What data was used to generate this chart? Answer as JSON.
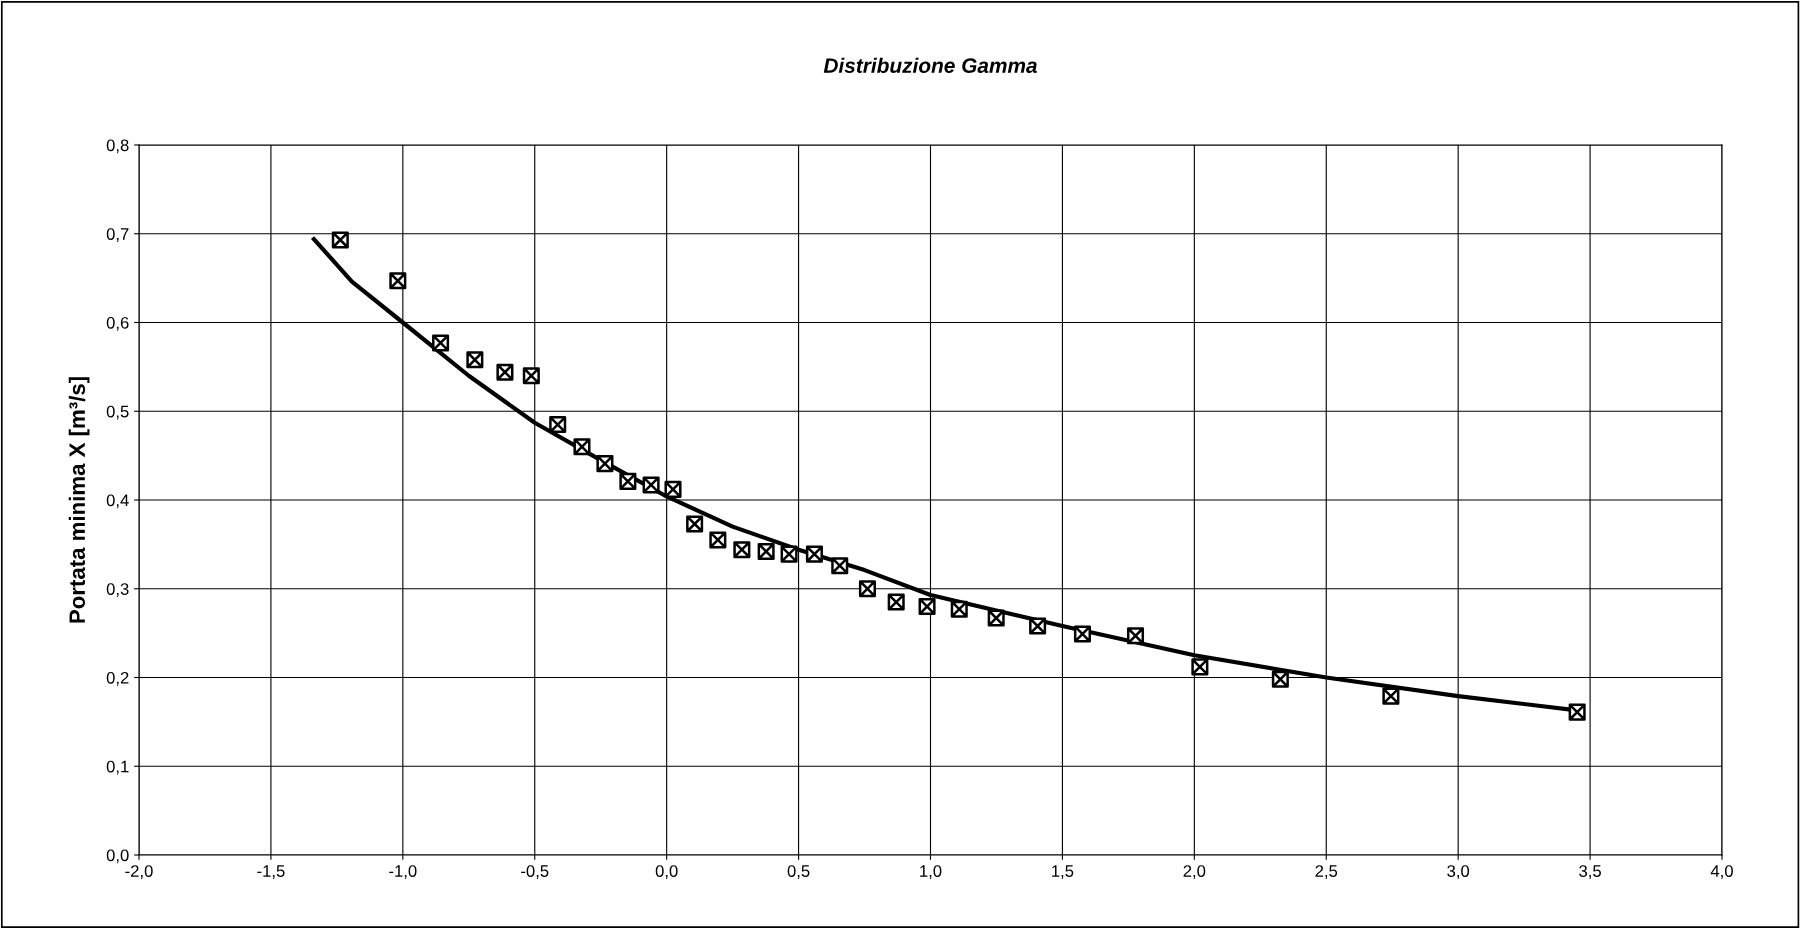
{
  "chart_data": {
    "type": "scatter",
    "title": "Distribuzione Gamma",
    "ylabel": "Portata minima X [m³/s]",
    "xlim": [
      -2.0,
      4.0
    ],
    "ylim": [
      0.0,
      0.8
    ],
    "xticks": [
      {
        "value": -2.0,
        "label": "-2,0"
      },
      {
        "value": -1.5,
        "label": "-1,5"
      },
      {
        "value": -1.0,
        "label": "-1,0"
      },
      {
        "value": -0.5,
        "label": "-0,5"
      },
      {
        "value": 0.0,
        "label": "0,0"
      },
      {
        "value": 0.5,
        "label": "0,5"
      },
      {
        "value": 1.0,
        "label": "1,0"
      },
      {
        "value": 1.5,
        "label": "1,5"
      },
      {
        "value": 2.0,
        "label": "2,0"
      },
      {
        "value": 2.5,
        "label": "2,5"
      },
      {
        "value": 3.0,
        "label": "3,0"
      },
      {
        "value": 3.5,
        "label": "3,5"
      },
      {
        "value": 4.0,
        "label": "4,0"
      }
    ],
    "yticks": [
      {
        "value": 0.0,
        "label": "0,0"
      },
      {
        "value": 0.1,
        "label": "0,1"
      },
      {
        "value": 0.2,
        "label": "0,2"
      },
      {
        "value": 0.3,
        "label": "0,3"
      },
      {
        "value": 0.4,
        "label": "0,4"
      },
      {
        "value": 0.5,
        "label": "0,5"
      },
      {
        "value": 0.6,
        "label": "0,6"
      },
      {
        "value": 0.7,
        "label": "0,7"
      },
      {
        "value": 0.8,
        "label": "0,8"
      }
    ],
    "grid": true,
    "series": [
      {
        "type": "line",
        "color": "#000000",
        "marker": "none",
        "line_style": "solid",
        "x": [
          -1.337,
          -1.193,
          -1.0,
          -0.75,
          -0.5,
          -0.25,
          0.0,
          0.25,
          0.5,
          0.75,
          1.0,
          1.5,
          2.0,
          2.5,
          3.0,
          3.45
        ],
        "values": [
          0.694,
          0.646,
          0.6,
          0.54,
          0.487,
          0.445,
          0.404,
          0.37,
          0.344,
          0.321,
          0.293,
          0.258,
          0.225,
          0.2,
          0.179,
          0.163
        ]
      },
      {
        "color": "#000000",
        "marker": "cross",
        "x": [
          -1.237,
          -1.019,
          -0.857,
          -0.727,
          -0.613,
          -0.513,
          -0.413,
          -0.321,
          -0.234,
          -0.147,
          -0.059,
          0.024,
          0.106,
          0.194,
          0.285,
          0.377,
          0.464,
          0.56,
          0.656,
          0.761,
          0.87,
          0.987,
          1.109,
          1.249,
          1.406,
          1.576,
          1.777,
          2.021,
          2.326,
          2.745,
          3.451
        ],
        "values": [
          0.693,
          0.647,
          0.577,
          0.558,
          0.544,
          0.54,
          0.485,
          0.46,
          0.441,
          0.421,
          0.417,
          0.412,
          0.373,
          0.355,
          0.344,
          0.342,
          0.339,
          0.339,
          0.326,
          0.3,
          0.285,
          0.28,
          0.277,
          0.267,
          0.258,
          0.249,
          0.247,
          0.212,
          0.198,
          0.179,
          0.161
        ]
      }
    ]
  }
}
